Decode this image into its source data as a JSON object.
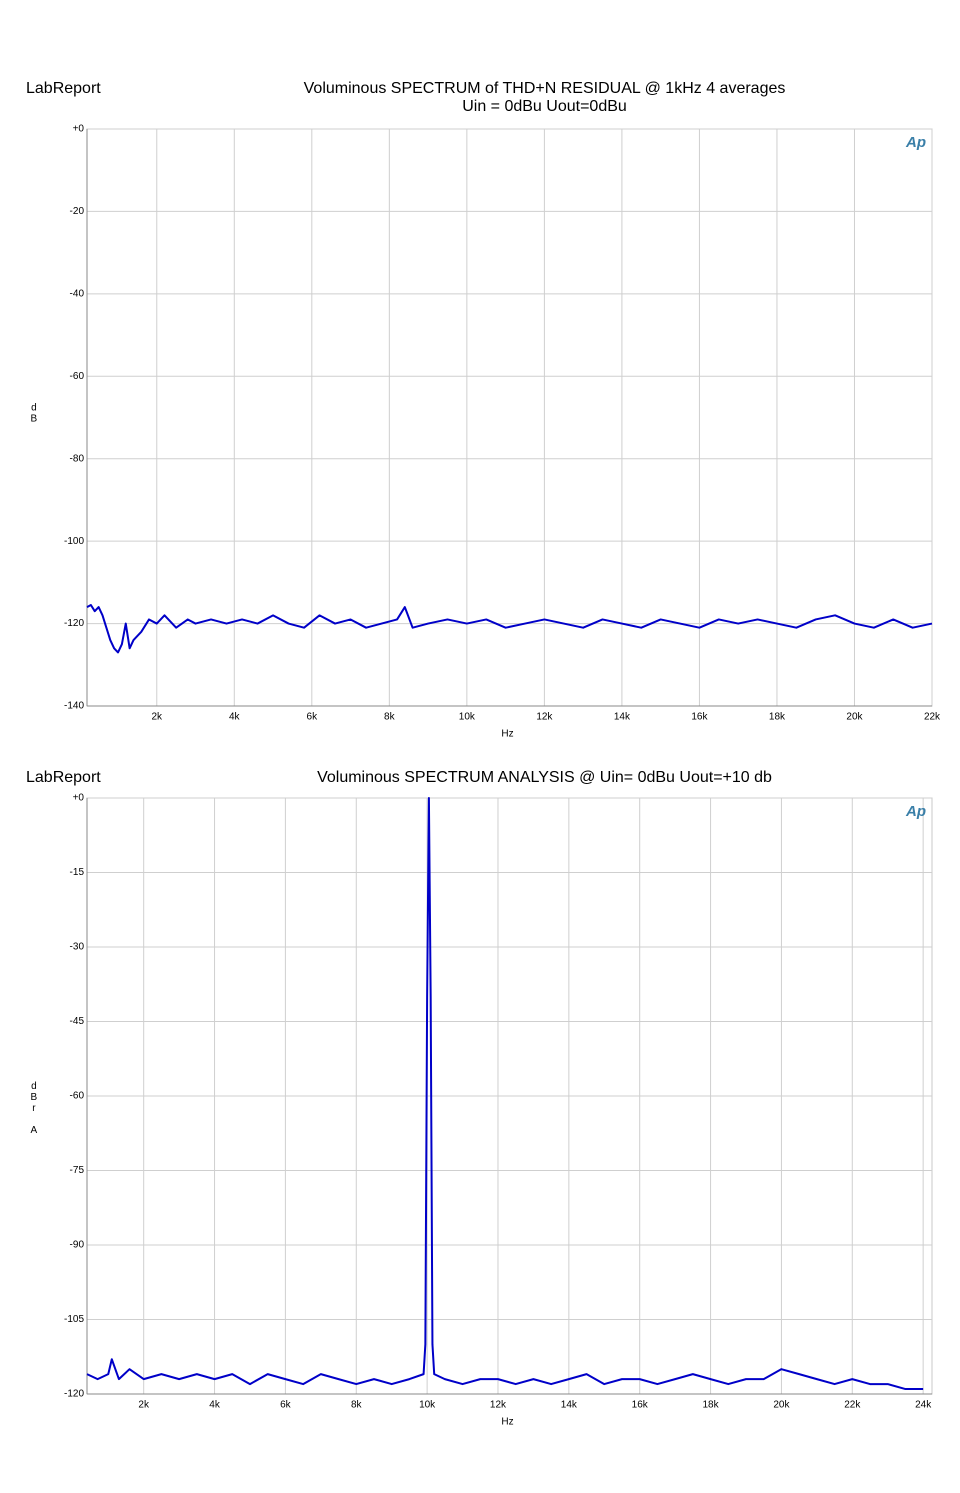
{
  "chart_data": [
    {
      "type": "line",
      "header": "LabReport",
      "title": "Voluminous SPECTRUM of THD+N RESIDUAL  @ 1kHz 4 averages",
      "subtitle": "Uin = 0dBu Uout=0dBu",
      "x_label": "Hz",
      "y_label": "dB",
      "logo": "Ap",
      "xlim": [
        200,
        22000
      ],
      "ylim": [
        -140,
        0
      ],
      "xticks": [
        {
          "value": 2000,
          "label": "2k"
        },
        {
          "value": 4000,
          "label": "4k"
        },
        {
          "value": 6000,
          "label": "6k"
        },
        {
          "value": 8000,
          "label": "8k"
        },
        {
          "value": 10000,
          "label": "10k"
        },
        {
          "value": 12000,
          "label": "12k"
        },
        {
          "value": 14000,
          "label": "14k"
        },
        {
          "value": 16000,
          "label": "16k"
        },
        {
          "value": 18000,
          "label": "18k"
        },
        {
          "value": 20000,
          "label": "20k"
        },
        {
          "value": 22000,
          "label": "22k"
        }
      ],
      "yticks": [
        {
          "value": 0,
          "label": "+0"
        },
        -20,
        -40,
        -60,
        -80,
        -100,
        -120,
        -140
      ],
      "grid": true,
      "color": "#0000c8",
      "x": [
        200,
        300,
        400,
        500,
        600,
        700,
        800,
        900,
        1000,
        1100,
        1200,
        1300,
        1400,
        1600,
        1800,
        2000,
        2200,
        2500,
        2800,
        3000,
        3400,
        3800,
        4200,
        4600,
        5000,
        5400,
        5800,
        6200,
        6600,
        7000,
        7400,
        7800,
        8200,
        8400,
        8600,
        9000,
        9500,
        10000,
        10500,
        11000,
        11500,
        12000,
        12500,
        13000,
        13500,
        14000,
        14500,
        15000,
        15500,
        16000,
        16500,
        17000,
        17500,
        18000,
        18500,
        19000,
        19500,
        20000,
        20500,
        21000,
        21500,
        22000
      ],
      "values": [
        -116,
        -115.5,
        -117,
        -116,
        -118,
        -121,
        -124,
        -126,
        -127,
        -125,
        -120,
        -126,
        -124,
        -122,
        -119,
        -120,
        -118,
        -121,
        -119,
        -120,
        -119,
        -120,
        -119,
        -120,
        -118,
        -120,
        -121,
        -118,
        -120,
        -119,
        -121,
        -120,
        -119,
        -116,
        -121,
        -120,
        -119,
        -120,
        -119,
        -121,
        -120,
        -119,
        -120,
        -121,
        -119,
        -120,
        -121,
        -119,
        -120,
        -121,
        -119,
        -120,
        -119,
        -120,
        -121,
        -119,
        -118,
        -120,
        -121,
        -119,
        -121,
        -120
      ]
    },
    {
      "type": "line",
      "header": "LabReport",
      "title": "Voluminous SPECTRUM ANALYSIS  @ Uin= 0dBu Uout=+10 db",
      "x_label": "Hz",
      "y_label": "dBr A",
      "logo": "Ap",
      "xlim": [
        400,
        24250
      ],
      "ylim": [
        -120,
        0
      ],
      "xticks": [
        {
          "value": 2000,
          "label": "2k"
        },
        {
          "value": 4000,
          "label": "4k"
        },
        {
          "value": 6000,
          "label": "6k"
        },
        {
          "value": 8000,
          "label": "8k"
        },
        {
          "value": 10000,
          "label": "10k"
        },
        {
          "value": 12000,
          "label": "12k"
        },
        {
          "value": 14000,
          "label": "14k"
        },
        {
          "value": 16000,
          "label": "16k"
        },
        {
          "value": 18000,
          "label": "18k"
        },
        {
          "value": 20000,
          "label": "20k"
        },
        {
          "value": 22000,
          "label": "22k"
        },
        {
          "value": 24000,
          "label": "24k"
        }
      ],
      "yticks": [
        {
          "value": 0,
          "label": "+0"
        },
        -15,
        -30,
        -45,
        -60,
        -75,
        -90,
        -105,
        -120
      ],
      "grid": true,
      "color": "#0000c8",
      "x": [
        400,
        700,
        1000,
        1100,
        1300,
        1600,
        2000,
        2500,
        3000,
        3500,
        4000,
        4500,
        5000,
        5500,
        6000,
        6500,
        7000,
        7500,
        8000,
        8500,
        9000,
        9500,
        9900,
        9950,
        10000,
        10050,
        10100,
        10150,
        10200,
        10500,
        11000,
        11500,
        12000,
        12500,
        13000,
        13500,
        14000,
        14500,
        15000,
        15500,
        16000,
        16500,
        17000,
        17500,
        18000,
        18500,
        19000,
        19500,
        20000,
        20500,
        21000,
        21500,
        22000,
        22500,
        23000,
        23500,
        24000
      ],
      "values": [
        -116,
        -117,
        -116,
        -113,
        -117,
        -115,
        -117,
        -116,
        -117,
        -116,
        -117,
        -116,
        -118,
        -116,
        -117,
        -118,
        -116,
        -117,
        -118,
        -117,
        -118,
        -117,
        -116,
        -110,
        -40,
        0,
        -40,
        -110,
        -116,
        -117,
        -118,
        -117,
        -117,
        -118,
        -117,
        -118,
        -117,
        -116,
        -118,
        -117,
        -117,
        -118,
        -117,
        -116,
        -117,
        -118,
        -117,
        -117,
        -115,
        -116,
        -117,
        -118,
        -117,
        -118,
        -118,
        -119,
        -119
      ]
    }
  ]
}
